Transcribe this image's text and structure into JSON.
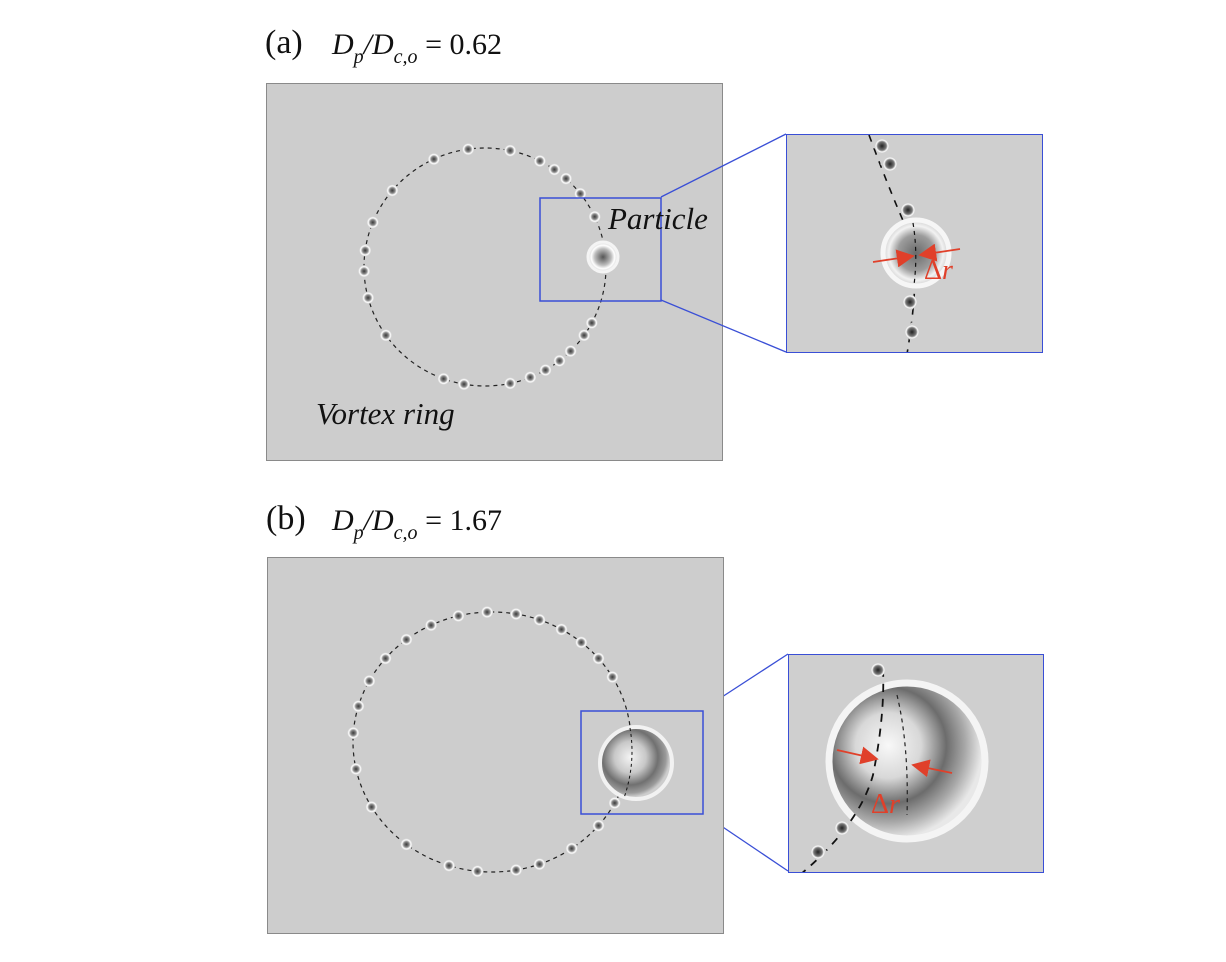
{
  "panel_a": {
    "label": "(a)",
    "ratio_D": "D",
    "ratio_p": "p",
    "ratio_slash": "/D",
    "ratio_sub": "c,o",
    "ratio_value": " = 0.62",
    "particle_label": "Particle",
    "ring_label": "Vortex ring",
    "delta_symbol": "Δ",
    "delta_var": "r"
  },
  "panel_b": {
    "label": "(b)",
    "ratio_D": "D",
    "ratio_p": "p",
    "ratio_slash": "/D",
    "ratio_sub": "c,o",
    "ratio_value": " = 1.67",
    "delta_symbol": "Δ",
    "delta_var": "r"
  },
  "colors": {
    "frame_bg": "#cdcdcd",
    "inset_border": "#3a4fd6",
    "arrow": "#e0402a"
  }
}
